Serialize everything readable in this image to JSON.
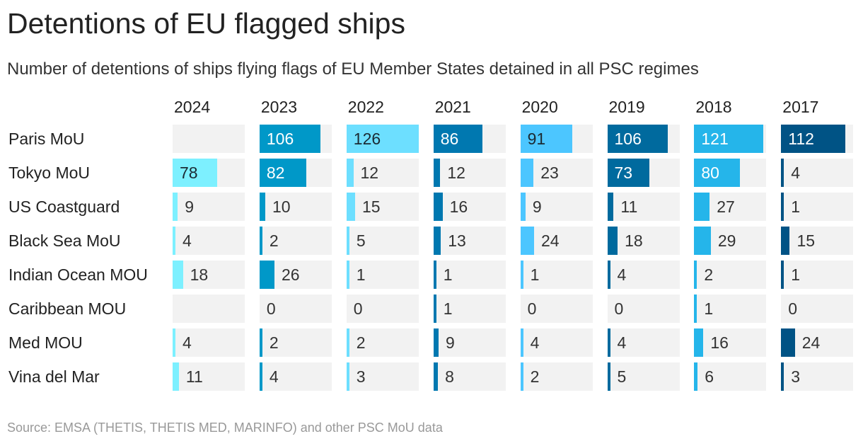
{
  "title": "Detentions of EU flagged ships",
  "subtitle": "Number of detentions of ships flying flags of EU Member States detained in all PSC regimes",
  "source": "Source: EMSA (THETIS, THETIS MED, MARINFO) and other PSC MoU data",
  "chart_data": {
    "type": "table",
    "title": "Detentions of EU flagged ships",
    "columns": [
      "2024",
      "2023",
      "2022",
      "2021",
      "2020",
      "2019",
      "2018",
      "2017"
    ],
    "rows": [
      "Paris MoU",
      "Tokyo MoU",
      "US Coastguard",
      "Black Sea MoU",
      "Indian Ocean MOU",
      "Caribbean MOU",
      "Med MOU",
      "Vina del Mar"
    ],
    "column_colors": [
      "#7df0ff",
      "#0098c8",
      "#6ddfff",
      "#0078b0",
      "#4cc6ff",
      "#006a9e",
      "#25b5ea",
      "#005385"
    ],
    "values": [
      [
        null,
        106,
        126,
        86,
        91,
        106,
        121,
        112
      ],
      [
        78,
        82,
        12,
        12,
        23,
        73,
        80,
        4
      ],
      [
        9,
        10,
        15,
        16,
        9,
        11,
        27,
        1
      ],
      [
        4,
        2,
        5,
        13,
        24,
        18,
        29,
        15
      ],
      [
        18,
        26,
        1,
        1,
        1,
        4,
        2,
        1
      ],
      [
        null,
        0,
        0,
        1,
        0,
        0,
        1,
        0
      ],
      [
        4,
        2,
        2,
        9,
        4,
        4,
        16,
        24
      ],
      [
        11,
        4,
        3,
        8,
        2,
        5,
        6,
        3
      ]
    ]
  }
}
